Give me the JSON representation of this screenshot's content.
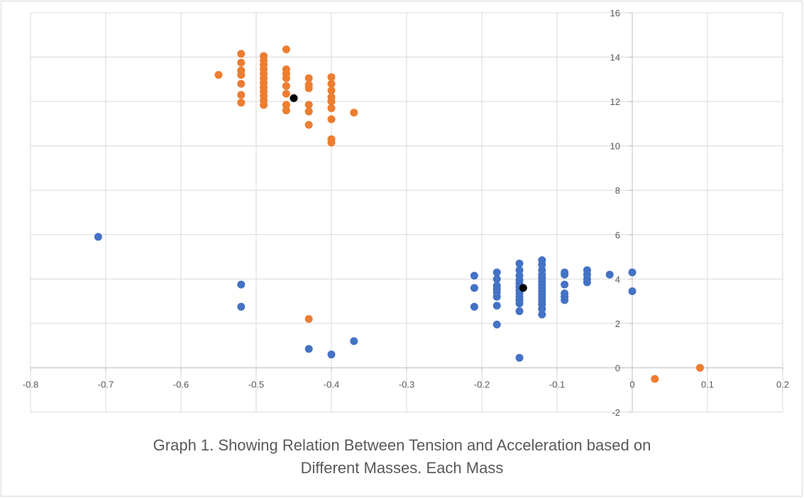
{
  "chart_data": {
    "type": "scatter",
    "title_lines": [
      "Graph 1. Showing Relation Between Tension and Acceleration based on",
      "Different Masses. Each Mass"
    ],
    "xlabel": "",
    "ylabel": "",
    "xlim": [
      -0.8,
      0.2
    ],
    "ylim": [
      -2,
      16
    ],
    "x_ticks": [
      -0.8,
      -0.7,
      -0.6,
      -0.5,
      -0.4,
      -0.3,
      -0.2,
      -0.1,
      0,
      0.1,
      0.2
    ],
    "x_tick_labels": [
      "-0.8",
      "-0.7",
      "-0.6",
      "-0.5",
      "-0.4",
      "-0.3",
      "-0.2",
      "-0.1",
      "0",
      "0.1",
      "0.2"
    ],
    "y_ticks": [
      -2,
      0,
      2,
      4,
      6,
      8,
      10,
      12,
      14,
      16
    ],
    "y_tick_labels": [
      "-2",
      "0",
      "2",
      "4",
      "6",
      "8",
      "10",
      "12",
      "14",
      "16"
    ],
    "grid": true,
    "legend": "none",
    "series": [
      {
        "color": "#4472c4",
        "points": [
          [
            -0.71,
            5.9
          ],
          [
            -0.52,
            3.75
          ],
          [
            -0.52,
            2.75
          ],
          [
            -0.43,
            0.85
          ],
          [
            -0.4,
            0.6
          ],
          [
            -0.37,
            1.2
          ],
          [
            -0.21,
            4.15
          ],
          [
            -0.21,
            3.6
          ],
          [
            -0.21,
            2.75
          ],
          [
            -0.18,
            4.3
          ],
          [
            -0.18,
            4.0
          ],
          [
            -0.18,
            3.7
          ],
          [
            -0.18,
            3.55
          ],
          [
            -0.18,
            3.4
          ],
          [
            -0.18,
            3.2
          ],
          [
            -0.18,
            2.8
          ],
          [
            -0.18,
            1.95
          ],
          [
            -0.15,
            4.7
          ],
          [
            -0.15,
            4.4
          ],
          [
            -0.15,
            4.15
          ],
          [
            -0.15,
            3.95
          ],
          [
            -0.15,
            3.8
          ],
          [
            -0.15,
            3.65
          ],
          [
            -0.15,
            3.5
          ],
          [
            -0.15,
            3.35
          ],
          [
            -0.15,
            3.2
          ],
          [
            -0.15,
            3.05
          ],
          [
            -0.15,
            2.9
          ],
          [
            -0.15,
            2.55
          ],
          [
            -0.15,
            0.45
          ],
          [
            -0.12,
            4.85
          ],
          [
            -0.12,
            4.65
          ],
          [
            -0.12,
            4.4
          ],
          [
            -0.12,
            4.2
          ],
          [
            -0.12,
            4.05
          ],
          [
            -0.12,
            3.9
          ],
          [
            -0.12,
            3.75
          ],
          [
            -0.12,
            3.6
          ],
          [
            -0.12,
            3.45
          ],
          [
            -0.12,
            3.3
          ],
          [
            -0.12,
            3.15
          ],
          [
            -0.12,
            3.0
          ],
          [
            -0.12,
            2.85
          ],
          [
            -0.12,
            2.65
          ],
          [
            -0.12,
            2.4
          ],
          [
            -0.09,
            4.3
          ],
          [
            -0.09,
            4.2
          ],
          [
            -0.09,
            3.75
          ],
          [
            -0.09,
            3.35
          ],
          [
            -0.09,
            3.2
          ],
          [
            -0.09,
            3.05
          ],
          [
            -0.06,
            4.4
          ],
          [
            -0.06,
            4.2
          ],
          [
            -0.06,
            4.0
          ],
          [
            -0.06,
            3.85
          ],
          [
            -0.03,
            4.2
          ],
          [
            0.0,
            4.3
          ],
          [
            0.0,
            3.45
          ]
        ]
      },
      {
        "color": "#ed7d31",
        "points": [
          [
            -0.55,
            13.2
          ],
          [
            -0.52,
            14.15
          ],
          [
            -0.52,
            13.75
          ],
          [
            -0.52,
            13.4
          ],
          [
            -0.52,
            13.2
          ],
          [
            -0.52,
            12.8
          ],
          [
            -0.52,
            12.3
          ],
          [
            -0.52,
            11.95
          ],
          [
            -0.49,
            14.05
          ],
          [
            -0.49,
            13.85
          ],
          [
            -0.49,
            13.65
          ],
          [
            -0.49,
            13.45
          ],
          [
            -0.49,
            13.25
          ],
          [
            -0.49,
            13.05
          ],
          [
            -0.49,
            12.85
          ],
          [
            -0.49,
            12.65
          ],
          [
            -0.49,
            12.45
          ],
          [
            -0.49,
            12.25
          ],
          [
            -0.49,
            12.05
          ],
          [
            -0.49,
            11.85
          ],
          [
            -0.46,
            14.35
          ],
          [
            -0.46,
            13.45
          ],
          [
            -0.46,
            13.25
          ],
          [
            -0.46,
            13.05
          ],
          [
            -0.46,
            12.7
          ],
          [
            -0.46,
            12.35
          ],
          [
            -0.46,
            11.85
          ],
          [
            -0.46,
            11.6
          ],
          [
            -0.43,
            13.05
          ],
          [
            -0.43,
            12.75
          ],
          [
            -0.43,
            12.6
          ],
          [
            -0.43,
            11.85
          ],
          [
            -0.43,
            11.55
          ],
          [
            -0.43,
            10.95
          ],
          [
            -0.43,
            2.2
          ],
          [
            -0.4,
            13.1
          ],
          [
            -0.4,
            12.8
          ],
          [
            -0.4,
            12.5
          ],
          [
            -0.4,
            12.2
          ],
          [
            -0.4,
            12.0
          ],
          [
            -0.4,
            11.7
          ],
          [
            -0.4,
            11.2
          ],
          [
            -0.4,
            10.3
          ],
          [
            -0.4,
            10.15
          ],
          [
            -0.37,
            11.5
          ],
          [
            0.03,
            -0.5
          ],
          [
            0.09,
            0.0
          ]
        ]
      },
      {
        "color": "#000000",
        "points": [
          [
            -0.45,
            12.15
          ],
          [
            -0.145,
            3.6
          ]
        ]
      }
    ]
  }
}
